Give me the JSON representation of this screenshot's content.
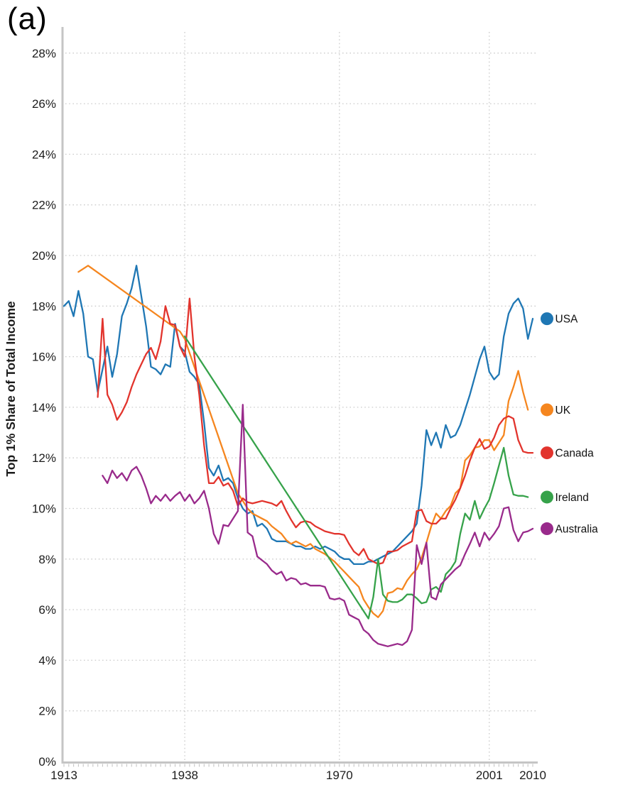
{
  "panel_label": "(a)",
  "colors": {
    "axis": "#c5c5c5",
    "grid": "#cbcbcb",
    "tick_text": "#1c1c1c"
  },
  "chart_data": {
    "type": "line",
    "title": "",
    "xlabel": "",
    "ylabel": "Top 1% Share of Total Income",
    "x_range": [
      1913,
      2010
    ],
    "ylim": [
      0,
      28
    ],
    "y_tick_step": 2,
    "y_tick_suffix": "%",
    "x_ticks": [
      1913,
      1938,
      1970,
      2001,
      2010
    ],
    "x_gridline_years": [
      1938,
      1970,
      2001
    ],
    "grid": "dotted",
    "legend_position": "right",
    "series": [
      {
        "name": "USA",
        "color": "#1f77b4",
        "start_year": 1913,
        "values": [
          18.0,
          18.2,
          17.6,
          18.6,
          17.7,
          16.0,
          15.9,
          14.6,
          15.5,
          16.4,
          15.2,
          16.1,
          17.6,
          18.1,
          18.7,
          19.6,
          18.4,
          17.2,
          15.6,
          15.5,
          15.3,
          15.7,
          15.6,
          17.3,
          16.4,
          16.2,
          15.4,
          15.2,
          14.9,
          13.4,
          11.6,
          11.3,
          11.7,
          11.1,
          11.2,
          11.0,
          10.4,
          10.0,
          9.8,
          9.9,
          9.3,
          9.4,
          9.2,
          8.8,
          8.7,
          8.7,
          8.7,
          8.6,
          8.5,
          8.5,
          8.4,
          8.4,
          8.5,
          8.4,
          8.5,
          8.4,
          8.3,
          8.1,
          8.0,
          8.0,
          7.8,
          7.8,
          7.8,
          7.9,
          7.9,
          8.0,
          8.1,
          8.2,
          8.3,
          8.5,
          8.7,
          8.9,
          9.1,
          9.4,
          10.9,
          13.1,
          12.5,
          13.0,
          12.4,
          13.3,
          12.8,
          12.9,
          13.3,
          13.9,
          14.5,
          15.2,
          15.9,
          16.4,
          15.4,
          15.1,
          15.3,
          16.8,
          17.7,
          18.1,
          18.3,
          17.9,
          16.7,
          17.5
        ]
      },
      {
        "name": "UK",
        "color": "#f5861f",
        "points": [
          [
            1916,
            19.35
          ],
          [
            1918,
            19.6
          ],
          [
            1937,
            17.0
          ],
          [
            1938,
            16.7
          ],
          [
            1949,
            10.6
          ],
          [
            1950,
            10.3
          ],
          [
            1951,
            10.0
          ],
          [
            1952,
            9.8
          ],
          [
            1953,
            9.7
          ],
          [
            1954,
            9.6
          ],
          [
            1955,
            9.5
          ],
          [
            1956,
            9.3
          ],
          [
            1957,
            9.15
          ],
          [
            1958,
            9.0
          ],
          [
            1959,
            8.75
          ],
          [
            1960,
            8.6
          ],
          [
            1961,
            8.7
          ],
          [
            1962,
            8.6
          ],
          [
            1963,
            8.5
          ],
          [
            1964,
            8.6
          ],
          [
            1965,
            8.4
          ],
          [
            1966,
            8.3
          ],
          [
            1967,
            8.2
          ],
          [
            1968,
            8.05
          ],
          [
            1969,
            7.9
          ],
          [
            1970,
            7.7
          ],
          [
            1971,
            7.5
          ],
          [
            1972,
            7.3
          ],
          [
            1973,
            7.1
          ],
          [
            1974,
            6.9
          ],
          [
            1975,
            6.4
          ],
          [
            1976,
            6.1
          ],
          [
            1977,
            5.85
          ],
          [
            1978,
            5.7
          ],
          [
            1979,
            5.95
          ],
          [
            1980,
            6.65
          ],
          [
            1981,
            6.7
          ],
          [
            1982,
            6.85
          ],
          [
            1983,
            6.8
          ],
          [
            1984,
            7.15
          ],
          [
            1985,
            7.4
          ],
          [
            1986,
            7.6
          ],
          [
            1987,
            8.05
          ],
          [
            1988,
            8.65
          ],
          [
            1989,
            9.3
          ],
          [
            1990,
            9.8
          ],
          [
            1991,
            9.6
          ],
          [
            1992,
            9.9
          ],
          [
            1993,
            10.1
          ],
          [
            1994,
            10.6
          ],
          [
            1995,
            10.8
          ],
          [
            1996,
            11.9
          ],
          [
            1997,
            12.1
          ],
          [
            1998,
            12.4
          ],
          [
            1999,
            12.45
          ],
          [
            2000,
            12.7
          ],
          [
            2001,
            12.7
          ],
          [
            2002,
            12.3
          ],
          [
            2003,
            12.6
          ],
          [
            2004,
            12.9
          ],
          [
            2005,
            14.25
          ],
          [
            2006,
            14.8
          ],
          [
            2007,
            15.44
          ],
          [
            2008,
            14.6
          ],
          [
            2009,
            13.9
          ]
        ]
      },
      {
        "name": "Canada",
        "color": "#e2342d",
        "start_year": 1920,
        "values": [
          14.4,
          17.5,
          14.5,
          14.1,
          13.5,
          13.8,
          14.2,
          14.8,
          15.3,
          15.7,
          16.1,
          16.35,
          15.9,
          16.6,
          18.0,
          17.3,
          17.25,
          16.4,
          16.0,
          18.3,
          16.0,
          14.5,
          12.5,
          11.0,
          11.0,
          11.25,
          10.9,
          11.0,
          10.7,
          10.1,
          10.4,
          10.25,
          10.2,
          10.25,
          10.3,
          10.25,
          10.2,
          10.1,
          10.3,
          9.9,
          9.55,
          9.25,
          9.45,
          9.5,
          9.45,
          9.3,
          9.2,
          9.1,
          9.05,
          9.0,
          9.0,
          8.95,
          8.6,
          8.3,
          8.15,
          8.4,
          8.0,
          7.9,
          7.8,
          7.85,
          8.3,
          8.3,
          8.35,
          8.5,
          8.6,
          8.7,
          9.9,
          9.95,
          9.5,
          9.4,
          9.4,
          9.6,
          9.6,
          10.0,
          10.35,
          10.8,
          11.3,
          11.9,
          12.4,
          12.75,
          12.35,
          12.45,
          12.8,
          13.3,
          13.55,
          13.65,
          13.55,
          12.7,
          12.25,
          12.2,
          12.2
        ]
      },
      {
        "name": "Ireland",
        "color": "#36a24a",
        "points": [
          [
            1938,
            16.8
          ],
          [
            1976,
            5.65
          ],
          [
            1977,
            6.5
          ],
          [
            1978,
            8.0
          ],
          [
            1979,
            6.6
          ],
          [
            1980,
            6.35
          ],
          [
            1981,
            6.3
          ],
          [
            1982,
            6.3
          ],
          [
            1983,
            6.4
          ],
          [
            1984,
            6.6
          ],
          [
            1985,
            6.6
          ],
          [
            1986,
            6.45
          ],
          [
            1987,
            6.25
          ],
          [
            1988,
            6.3
          ],
          [
            1989,
            6.8
          ],
          [
            1990,
            6.9
          ],
          [
            1991,
            6.7
          ],
          [
            1992,
            7.4
          ],
          [
            1993,
            7.6
          ],
          [
            1994,
            7.9
          ],
          [
            1995,
            9.0
          ],
          [
            1996,
            9.8
          ],
          [
            1997,
            9.55
          ],
          [
            1998,
            10.3
          ],
          [
            1999,
            9.6
          ],
          [
            2000,
            10.0
          ],
          [
            2001,
            10.35
          ],
          [
            2002,
            11.0
          ],
          [
            2003,
            11.7
          ],
          [
            2004,
            12.4
          ],
          [
            2005,
            11.3
          ],
          [
            2006,
            10.55
          ],
          [
            2007,
            10.5
          ],
          [
            2008,
            10.5
          ],
          [
            2009,
            10.45
          ]
        ]
      },
      {
        "name": "Australia",
        "color": "#992a8b",
        "start_year": 1921,
        "values": [
          11.3,
          11.0,
          11.5,
          11.2,
          11.4,
          11.1,
          11.5,
          11.65,
          11.3,
          10.8,
          10.2,
          10.5,
          10.3,
          10.55,
          10.3,
          10.5,
          10.65,
          10.3,
          10.55,
          10.2,
          10.4,
          10.7,
          10.0,
          9.0,
          8.6,
          9.35,
          9.3,
          9.6,
          9.9,
          14.1,
          9.05,
          8.9,
          8.1,
          7.95,
          7.8,
          7.55,
          7.4,
          7.5,
          7.15,
          7.25,
          7.2,
          7.0,
          7.05,
          6.95,
          6.95,
          6.95,
          6.9,
          6.45,
          6.4,
          6.45,
          6.35,
          5.8,
          5.7,
          5.6,
          5.2,
          5.05,
          4.8,
          4.65,
          4.6,
          4.55,
          4.6,
          4.65,
          4.6,
          4.75,
          5.2,
          8.55,
          7.8,
          8.65,
          6.5,
          6.4,
          7.0,
          7.2,
          7.4,
          7.6,
          7.75,
          8.2,
          8.6,
          9.05,
          8.5,
          9.05,
          8.75,
          9.0,
          9.3,
          10.0,
          10.05,
          9.15,
          8.7,
          9.05,
          9.1,
          9.2
        ]
      }
    ]
  }
}
